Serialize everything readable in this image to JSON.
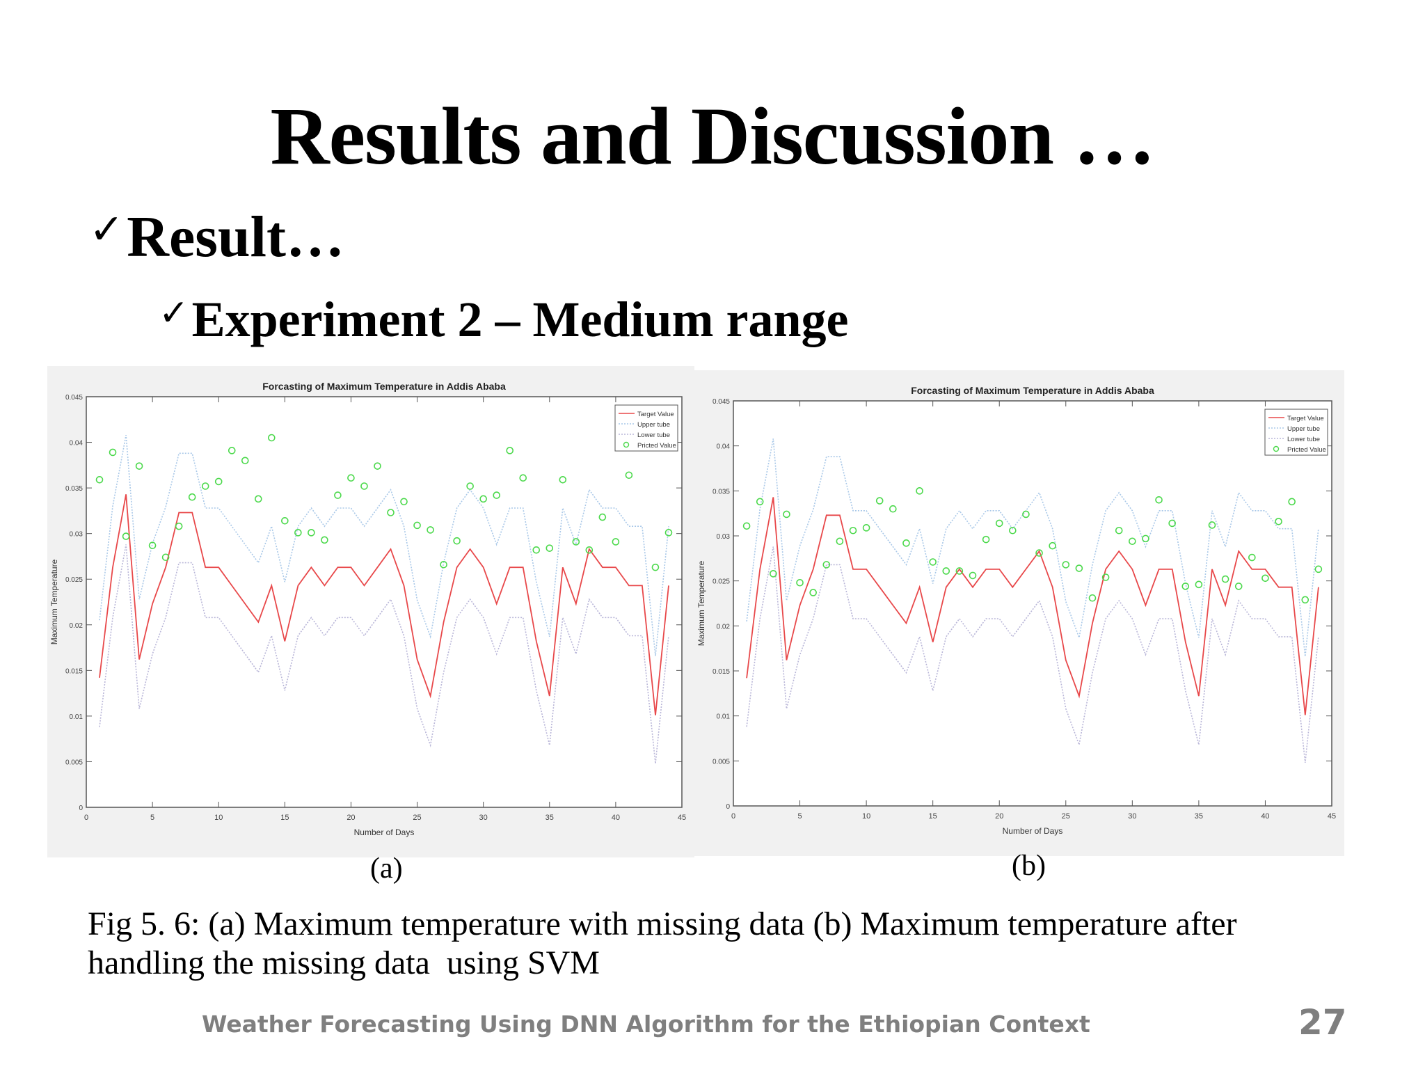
{
  "slide": {
    "title": "Results and Discussion …",
    "bullet_level1": "Result…",
    "bullet_level2": "Experiment 2 – Medium range",
    "check_glyph": "✓",
    "caption_line1": "Fig 5. 6: (a) Maximum temperature with missing data (b) Maximum temperature after",
    "caption_line2": "handling the missing data  using SVM",
    "footer": "Weather Forecasting Using DNN Algorithm for the Ethiopian Context",
    "page_number": "27"
  },
  "figures": [
    {
      "label": "(a)",
      "title": "Forcasting of Maximum Temperature in Addis Ababa",
      "xlabel": "Number of Days",
      "ylabel": "Maximum Temperature"
    },
    {
      "label": "(b)",
      "title": "Forcasting of Maximum Temperature in Addis Ababa",
      "xlabel": "Number of Days",
      "ylabel": "Maximum Temperature"
    }
  ],
  "legend": [
    "Target Value",
    "Upper tube",
    "Lower tube",
    "Pricted Value"
  ],
  "colors": {
    "target": "#e8484a",
    "upper": "#a9c8e8",
    "lower": "#b9b6d8",
    "predicted": "#4cd94c",
    "axes_bg": "#ffffff",
    "fig_bg": "#f1f1f1"
  },
  "chart_data": [
    {
      "type": "line",
      "title": "Forcasting of Maximum Temperature in Addis Ababa",
      "panel": "(a)",
      "xlabel": "Number of Days",
      "ylabel": "Maximum Temperature",
      "xlim": [
        0,
        45
      ],
      "ylim": [
        0,
        0.045
      ],
      "xticks": [
        0,
        5,
        10,
        15,
        20,
        25,
        30,
        35,
        40,
        45
      ],
      "yticks": [
        0,
        0.005,
        0.01,
        0.015,
        0.02,
        0.025,
        0.03,
        0.035,
        0.04,
        0.045
      ],
      "grid": false,
      "legend_position": "upper right",
      "x": [
        1,
        2,
        3,
        4,
        5,
        6,
        7,
        8,
        9,
        10,
        11,
        12,
        13,
        14,
        15,
        16,
        17,
        18,
        19,
        20,
        21,
        22,
        23,
        24,
        25,
        26,
        27,
        28,
        29,
        30,
        31,
        32,
        33,
        34,
        35,
        36,
        37,
        38,
        39,
        40,
        41,
        42,
        43,
        44
      ],
      "series": [
        {
          "name": "Target Value",
          "style": "solid red line",
          "values": [
            0.0142,
            0.0263,
            0.0343,
            0.0162,
            0.0223,
            0.0263,
            0.0323,
            0.0323,
            0.0263,
            0.0263,
            0.0243,
            0.0223,
            0.0203,
            0.0243,
            0.0182,
            0.0243,
            0.0263,
            0.0243,
            0.0263,
            0.0263,
            0.0243,
            0.0263,
            0.0283,
            0.0243,
            0.0162,
            0.0122,
            0.0203,
            0.0263,
            0.0283,
            0.0263,
            0.0223,
            0.0263,
            0.0263,
            0.0182,
            0.0122,
            0.0263,
            0.0223,
            0.0283,
            0.0263,
            0.0263,
            0.0243,
            0.0243,
            0.0101,
            0.0243
          ]
        },
        {
          "name": "Upper tube",
          "style": "dotted light blue line",
          "values": [
            0.0205,
            0.033,
            0.0408,
            0.0228,
            0.0289,
            0.0329,
            0.0388,
            0.0388,
            0.0328,
            0.0328,
            0.0308,
            0.0288,
            0.0268,
            0.0308,
            0.0247,
            0.0308,
            0.0328,
            0.0308,
            0.0328,
            0.0328,
            0.0308,
            0.0328,
            0.0348,
            0.0308,
            0.0227,
            0.0187,
            0.0268,
            0.0328,
            0.0348,
            0.0328,
            0.0288,
            0.0328,
            0.0328,
            0.0247,
            0.0187,
            0.0328,
            0.0288,
            0.0348,
            0.0328,
            0.0328,
            0.0308,
            0.0308,
            0.0166,
            0.0308
          ]
        },
        {
          "name": "Lower tube",
          "style": "dotted light purple line",
          "values": [
            0.0088,
            0.0208,
            0.0288,
            0.0108,
            0.0168,
            0.0208,
            0.0268,
            0.0268,
            0.0208,
            0.0208,
            0.0188,
            0.0168,
            0.0148,
            0.0188,
            0.0128,
            0.0188,
            0.0208,
            0.0188,
            0.0208,
            0.0208,
            0.0188,
            0.0208,
            0.0228,
            0.0188,
            0.0108,
            0.0068,
            0.0148,
            0.0208,
            0.0228,
            0.0208,
            0.0168,
            0.0208,
            0.0208,
            0.0128,
            0.0068,
            0.0208,
            0.0168,
            0.0228,
            0.0208,
            0.0208,
            0.0188,
            0.0188,
            0.0048,
            0.0188
          ]
        },
        {
          "name": "Pricted Value",
          "style": "green circle markers",
          "values": [
            0.0359,
            0.0389,
            0.0297,
            0.0374,
            0.0287,
            0.0274,
            0.0308,
            0.034,
            0.0352,
            0.0357,
            0.0391,
            0.038,
            0.0338,
            0.0405,
            0.0314,
            0.0301,
            0.0301,
            0.0293,
            0.0342,
            0.0361,
            0.0352,
            0.0374,
            0.0323,
            0.0335,
            0.0309,
            0.0304,
            0.0266,
            0.0292,
            0.0352,
            0.0338,
            0.0342,
            0.0391,
            0.0361,
            0.0282,
            0.0284,
            0.0359,
            0.0291,
            0.0282,
            0.0318,
            0.0291,
            0.0364,
            null,
            0.0263,
            0.0301
          ]
        }
      ]
    },
    {
      "type": "line",
      "title": "Forcasting of Maximum Temperature in Addis Ababa",
      "panel": "(b)",
      "xlabel": "Number of Days",
      "ylabel": "Maximum Temperature",
      "xlim": [
        0,
        45
      ],
      "ylim": [
        0,
        0.045
      ],
      "xticks": [
        0,
        5,
        10,
        15,
        20,
        25,
        30,
        35,
        40,
        45
      ],
      "yticks": [
        0,
        0.005,
        0.01,
        0.015,
        0.02,
        0.025,
        0.03,
        0.035,
        0.04,
        0.045
      ],
      "grid": false,
      "legend_position": "upper right",
      "x": [
        1,
        2,
        3,
        4,
        5,
        6,
        7,
        8,
        9,
        10,
        11,
        12,
        13,
        14,
        15,
        16,
        17,
        18,
        19,
        20,
        21,
        22,
        23,
        24,
        25,
        26,
        27,
        28,
        29,
        30,
        31,
        32,
        33,
        34,
        35,
        36,
        37,
        38,
        39,
        40,
        41,
        42,
        43,
        44
      ],
      "series": [
        {
          "name": "Target Value",
          "style": "solid red line",
          "values": [
            0.0142,
            0.0263,
            0.0343,
            0.0162,
            0.0223,
            0.0263,
            0.0323,
            0.0323,
            0.0263,
            0.0263,
            0.0243,
            0.0223,
            0.0203,
            0.0243,
            0.0182,
            0.0243,
            0.0263,
            0.0243,
            0.0263,
            0.0263,
            0.0243,
            0.0263,
            0.0283,
            0.0243,
            0.0162,
            0.0122,
            0.0203,
            0.0263,
            0.0283,
            0.0263,
            0.0223,
            0.0263,
            0.0263,
            0.0182,
            0.0122,
            0.0263,
            0.0223,
            0.0283,
            0.0263,
            0.0263,
            0.0243,
            0.0243,
            0.0101,
            0.0243
          ]
        },
        {
          "name": "Upper tube",
          "style": "dotted light blue line",
          "values": [
            0.0205,
            0.033,
            0.0408,
            0.0228,
            0.0289,
            0.0329,
            0.0388,
            0.0388,
            0.0328,
            0.0328,
            0.0308,
            0.0288,
            0.0268,
            0.0308,
            0.0247,
            0.0308,
            0.0328,
            0.0308,
            0.0328,
            0.0328,
            0.0308,
            0.0328,
            0.0348,
            0.0308,
            0.0227,
            0.0187,
            0.0268,
            0.0328,
            0.0348,
            0.0328,
            0.0288,
            0.0328,
            0.0328,
            0.0247,
            0.0187,
            0.0328,
            0.0288,
            0.0348,
            0.0328,
            0.0328,
            0.0308,
            0.0308,
            0.0166,
            0.0308
          ]
        },
        {
          "name": "Lower tube",
          "style": "dotted light purple line",
          "values": [
            0.0088,
            0.0208,
            0.0288,
            0.0108,
            0.0168,
            0.0208,
            0.0268,
            0.0268,
            0.0208,
            0.0208,
            0.0188,
            0.0168,
            0.0148,
            0.0188,
            0.0128,
            0.0188,
            0.0208,
            0.0188,
            0.0208,
            0.0208,
            0.0188,
            0.0208,
            0.0228,
            0.0188,
            0.0108,
            0.0068,
            0.0148,
            0.0208,
            0.0228,
            0.0208,
            0.0168,
            0.0208,
            0.0208,
            0.0128,
            0.0068,
            0.0208,
            0.0168,
            0.0228,
            0.0208,
            0.0208,
            0.0188,
            0.0188,
            0.0048,
            0.0188
          ]
        },
        {
          "name": "Pricted Value",
          "style": "green circle markers",
          "values": [
            0.0311,
            0.0338,
            0.0258,
            0.0324,
            0.0248,
            0.0237,
            0.0268,
            0.0294,
            0.0306,
            0.0309,
            0.0339,
            0.033,
            0.0292,
            0.035,
            0.0271,
            0.0261,
            0.0261,
            0.0256,
            0.0296,
            0.0314,
            0.0306,
            0.0324,
            0.0281,
            0.0289,
            0.0268,
            0.0264,
            0.0231,
            0.0254,
            0.0306,
            0.0294,
            0.0297,
            0.034,
            0.0314,
            0.0244,
            0.0246,
            0.0312,
            0.0252,
            0.0244,
            0.0276,
            0.0253,
            0.0316,
            0.0338,
            0.0229,
            0.0263
          ]
        }
      ]
    }
  ]
}
